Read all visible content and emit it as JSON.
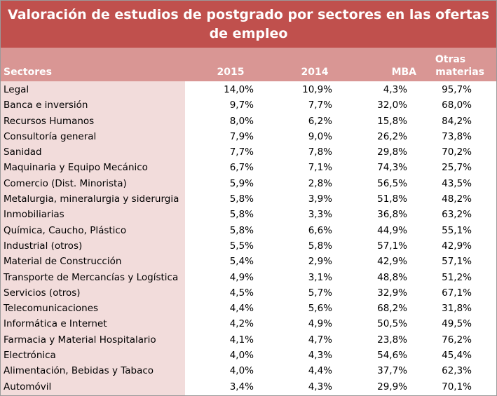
{
  "title": "Valoración de estudios de postgrado por sectores en las ofertas de empleo",
  "columns": {
    "sectores": "Sectores",
    "y2015": "2015",
    "y2014": "2014",
    "mba": "MBA",
    "otras_line1": "Otras",
    "otras_line2": "materias"
  },
  "rows": [
    {
      "sector": "Legal",
      "y2015": "14,0%",
      "y2014": "10,9%",
      "mba": "4,3%",
      "otras": "95,7%"
    },
    {
      "sector": "Banca e inversión",
      "y2015": "9,7%",
      "y2014": "7,7%",
      "mba": "32,0%",
      "otras": "68,0%"
    },
    {
      "sector": "Recursos Humanos",
      "y2015": "8,0%",
      "y2014": "6,2%",
      "mba": "15,8%",
      "otras": "84,2%"
    },
    {
      "sector": "Consultoría general",
      "y2015": "7,9%",
      "y2014": "9,0%",
      "mba": "26,2%",
      "otras": "73,8%"
    },
    {
      "sector": "Sanidad",
      "y2015": "7,7%",
      "y2014": "7,8%",
      "mba": "29,8%",
      "otras": "70,2%"
    },
    {
      "sector": "Maquinaria y Equipo Mecánico",
      "y2015": "6,7%",
      "y2014": "7,1%",
      "mba": "74,3%",
      "otras": "25,7%"
    },
    {
      "sector": "Comercio (Dist. Minorista)",
      "y2015": "5,9%",
      "y2014": "2,8%",
      "mba": "56,5%",
      "otras": "43,5%"
    },
    {
      "sector": "Metalurgia, mineralurgia y siderurgia",
      "y2015": "5,8%",
      "y2014": "3,9%",
      "mba": "51,8%",
      "otras": "48,2%"
    },
    {
      "sector": "Inmobiliarias",
      "y2015": "5,8%",
      "y2014": "3,3%",
      "mba": "36,8%",
      "otras": "63,2%"
    },
    {
      "sector": "Química, Caucho, Plástico",
      "y2015": "5,8%",
      "y2014": "6,6%",
      "mba": "44,9%",
      "otras": "55,1%"
    },
    {
      "sector": "Industrial (otros)",
      "y2015": "5,5%",
      "y2014": "5,8%",
      "mba": "57,1%",
      "otras": "42,9%"
    },
    {
      "sector": "Material de Construcción",
      "y2015": "5,4%",
      "y2014": "2,9%",
      "mba": "42,9%",
      "otras": "57,1%"
    },
    {
      "sector": "Transporte de Mercancías y Logística",
      "y2015": "4,9%",
      "y2014": "3,1%",
      "mba": "48,8%",
      "otras": "51,2%"
    },
    {
      "sector": "Servicios (otros)",
      "y2015": "4,5%",
      "y2014": "5,7%",
      "mba": "32,9%",
      "otras": "67,1%"
    },
    {
      "sector": "Telecomunicaciones",
      "y2015": "4,4%",
      "y2014": "5,6%",
      "mba": "68,2%",
      "otras": "31,8%"
    },
    {
      "sector": "Informática e Internet",
      "y2015": "4,2%",
      "y2014": "4,9%",
      "mba": "50,5%",
      "otras": "49,5%"
    },
    {
      "sector": "Farmacia y Material Hospitalario",
      "y2015": "4,1%",
      "y2014": "4,7%",
      "mba": "23,8%",
      "otras": "76,2%"
    },
    {
      "sector": "Electrónica",
      "y2015": "4,0%",
      "y2014": "4,3%",
      "mba": "54,6%",
      "otras": "45,4%"
    },
    {
      "sector": "Alimentación, Bebidas y Tabaco",
      "y2015": "4,0%",
      "y2014": "4,4%",
      "mba": "37,7%",
      "otras": "62,3%"
    },
    {
      "sector": "Automóvil",
      "y2015": "3,4%",
      "y2014": "4,3%",
      "mba": "29,9%",
      "otras": "70,1%"
    }
  ],
  "colors": {
    "title_bg": "#c0504d",
    "header_bg": "#d99694",
    "sector_col_bg": "#f2dcdb"
  }
}
